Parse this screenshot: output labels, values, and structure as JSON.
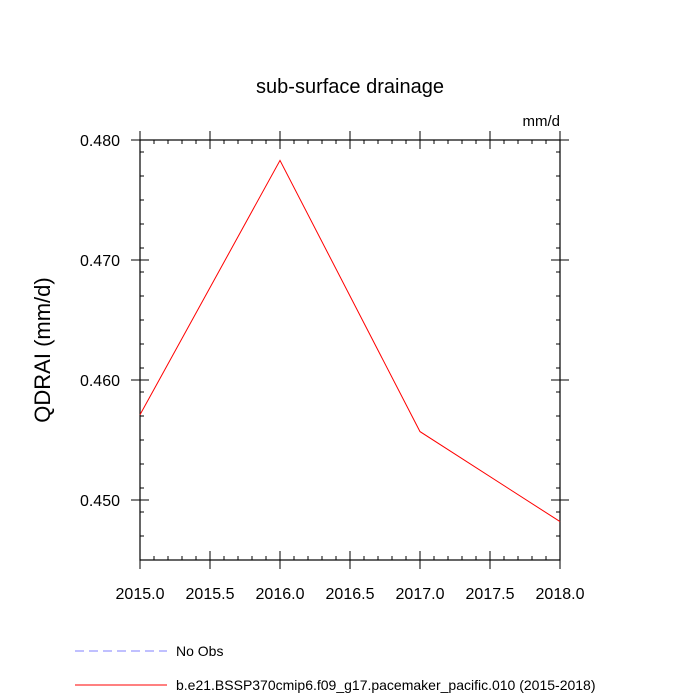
{
  "chart_data": {
    "type": "line",
    "title": "sub-surface drainage",
    "units_label": "mm/d",
    "ylabel": "QDRAI  (mm/d)",
    "xlabel": "",
    "xlim": [
      2015.0,
      2018.0
    ],
    "ylim": [
      0.445,
      0.48
    ],
    "x_ticks": [
      2015.0,
      2015.5,
      2016.0,
      2016.5,
      2017.0,
      2017.5,
      2018.0
    ],
    "x_tick_labels": [
      "2015.0",
      "2015.5",
      "2016.0",
      "2016.5",
      "2017.0",
      "2017.5",
      "2018.0"
    ],
    "y_ticks": [
      0.45,
      0.46,
      0.47,
      0.48
    ],
    "y_tick_labels": [
      "0.450",
      "0.460",
      "0.470",
      "0.480"
    ],
    "y_minor_step": 0.002,
    "x_minor_step": 0.1,
    "grid": false,
    "legend_position": "bottom",
    "series": [
      {
        "name": "b.e21.BSSP370cmip6.f09_g17.pacemaker_pacific.010 (2015-2018)",
        "color": "#ff0000",
        "dash": "solid",
        "x": [
          2015,
          2016,
          2017,
          2018
        ],
        "values": [
          0.4571,
          0.4783,
          0.4557,
          0.4482
        ]
      },
      {
        "name": "No Obs",
        "color": "#8080ff",
        "dash": "dashed",
        "x": [],
        "values": []
      }
    ]
  }
}
